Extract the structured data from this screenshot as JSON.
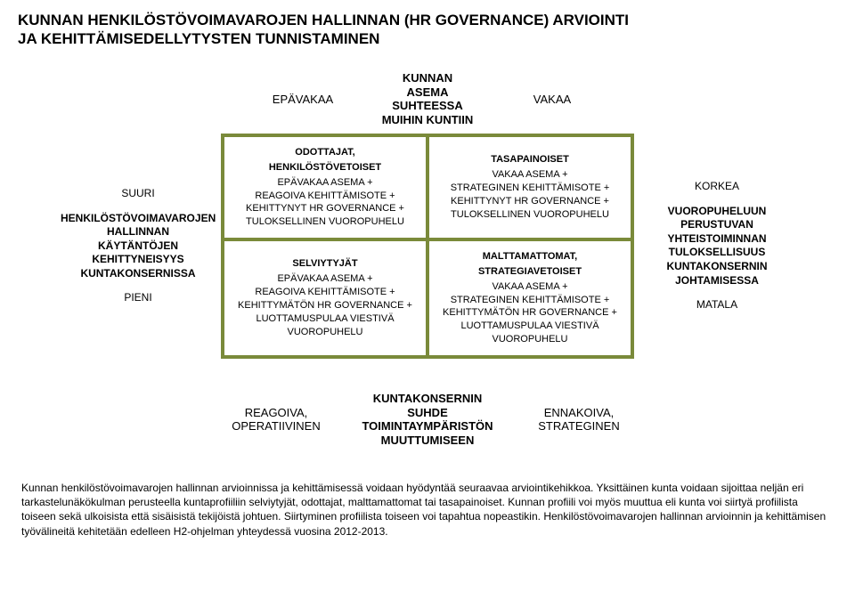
{
  "title_line1": "KUNNAN HENKILÖSTÖVOIMAVAROJEN HALLINNAN (HR GOVERNANCE) ARVIOINTI",
  "title_line2": "JA KEHITTÄMISEDELLYTYSTEN TUNNISTAMINEN",
  "axis_top": {
    "left": "EPÄVAKAA",
    "center_l1": "KUNNAN",
    "center_l2": "ASEMA",
    "center_l3": "SUHTEESSA",
    "center_l4": "MUIHIN KUNTIIN",
    "right": "VAKAA"
  },
  "left_axis": {
    "top": "SUURI",
    "mid_l1": "HENKILÖSTÖVOIMAVAROJEN",
    "mid_l2": "HALLINNAN",
    "mid_l3": "KÄYTÄNTÖJEN",
    "mid_l4": "KEHITTYNEISYYS",
    "mid_l5": "KUNTAKONSERNISSA",
    "bottom": "PIENI"
  },
  "right_axis": {
    "top": "KORKEA",
    "mid_l1": "VUOROPUHELUUN",
    "mid_l2": "PERUSTUVAN",
    "mid_l3": "YHTEISTOIMINNAN",
    "mid_l4": "TULOKSELLISUUS",
    "mid_l5": "KUNTAKONSERNIN",
    "mid_l6": "JOHTAMISESSA",
    "bottom": "MATALA"
  },
  "cells": {
    "tl": {
      "h": "ODOTTAJAT,",
      "h2": "HENKILÖSTÖVETOISET",
      "l1": "EPÄVAKAA ASEMA +",
      "l2": "REAGOIVA KEHITTÄMISOTE +",
      "l3": "KEHITTYNYT HR GOVERNANCE +",
      "l4": "TULOKSELLINEN VUOROPUHELU"
    },
    "tr": {
      "h": "TASAPAINOISET",
      "l1": "VAKAA ASEMA +",
      "l2": "STRATEGINEN KEHITTÄMISOTE +",
      "l3": "KEHITTYNYT HR GOVERNANCE +",
      "l4": "TULOKSELLINEN VUOROPUHELU"
    },
    "bl": {
      "h": "SELVIYTYJÄT",
      "l1": "EPÄVAKAA ASEMA +",
      "l2": "REAGOIVA KEHITTÄMISOTE +",
      "l3": "KEHITTYMÄTÖN HR GOVERNANCE +",
      "l4": "LUOTTAMUSPULAA VIESTIVÄ",
      "l5": "VUOROPUHELU"
    },
    "br": {
      "h": "MALTTAMATTOMAT,",
      "h2": "STRATEGIAVETOISET",
      "l1": "VAKAA ASEMA +",
      "l2": "STRATEGINEN KEHITTÄMISOTE +",
      "l3": "KEHITTYMÄTÖN HR GOVERNANCE +",
      "l4": "LUOTTAMUSPULAA VIESTIVÄ",
      "l5": "VUOROPUHELU"
    }
  },
  "axis_bottom": {
    "left_l1": "REAGOIVA,",
    "left_l2": "OPERATIIVINEN",
    "center_l1": "KUNTAKONSERNIN",
    "center_l2": "SUHDE",
    "center_l3": "TOIMINTAYMPÄRISTÖN",
    "center_l4": "MUUTTUMISEEN",
    "right_l1": "ENNAKOIVA,",
    "right_l2": "STRATEGINEN"
  },
  "description": "Kunnan henkilöstövoimavarojen hallinnan arvioinnissa ja kehittämisessä voidaan hyödyntää seuraavaa arviointikehikkoa. Yksittäinen kunta voidaan sijoittaa neljän eri tarkastelunäkökulman perusteella kuntaprofiiliin selviytyjät, odottajat, malttamattomat tai tasapainoiset. Kunnan profiili voi myös muuttua eli kunta voi siirtyä profiilista toiseen sekä ulkoisista että sisäisistä tekijöistä johtuen. Siirtyminen profiilista toiseen voi tapahtua nopeastikin. Henkilöstövoimavarojen hallinnan arvioinnin ja kehittämisen työvälineitä kehitetään edelleen H2-ohjelman yhteydessä vuosina 2012-2013.",
  "colors": {
    "border": "#7a8a3a",
    "text": "#000000",
    "bg": "#ffffff"
  }
}
